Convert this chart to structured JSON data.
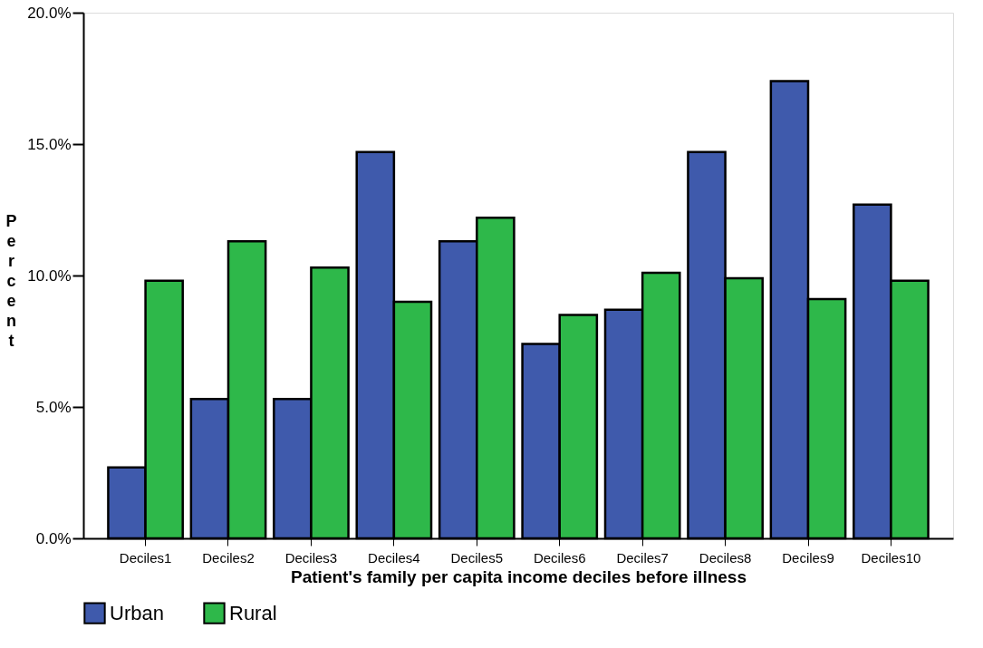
{
  "chart_data": {
    "type": "bar",
    "xlabel": "Patient's family per capita income deciles before illness",
    "ylabel": "Percent",
    "categories": [
      "Deciles1",
      "Deciles2",
      "Deciles3",
      "Deciles4",
      "Deciles5",
      "Deciles6",
      "Deciles7",
      "Deciles8",
      "Deciles9",
      "Deciles10"
    ],
    "series": [
      {
        "name": "Urban",
        "color": "#3f5aac",
        "values": [
          2.7,
          5.3,
          5.3,
          14.7,
          11.3,
          7.4,
          8.7,
          14.7,
          17.4,
          12.7
        ]
      },
      {
        "name": "Rural",
        "color": "#2eb84a",
        "values": [
          9.8,
          11.3,
          10.3,
          9.0,
          12.2,
          8.5,
          10.1,
          9.9,
          9.1,
          9.8
        ]
      }
    ],
    "ylim": [
      0,
      20
    ],
    "yticks": [
      {
        "value": 0,
        "label": "0.0%"
      },
      {
        "value": 5,
        "label": "5.0%"
      },
      {
        "value": 10,
        "label": "10.0%"
      },
      {
        "value": 15,
        "label": "15.0%"
      },
      {
        "value": 20,
        "label": "20.0%"
      }
    ],
    "grid": false,
    "legend": "bottom"
  }
}
